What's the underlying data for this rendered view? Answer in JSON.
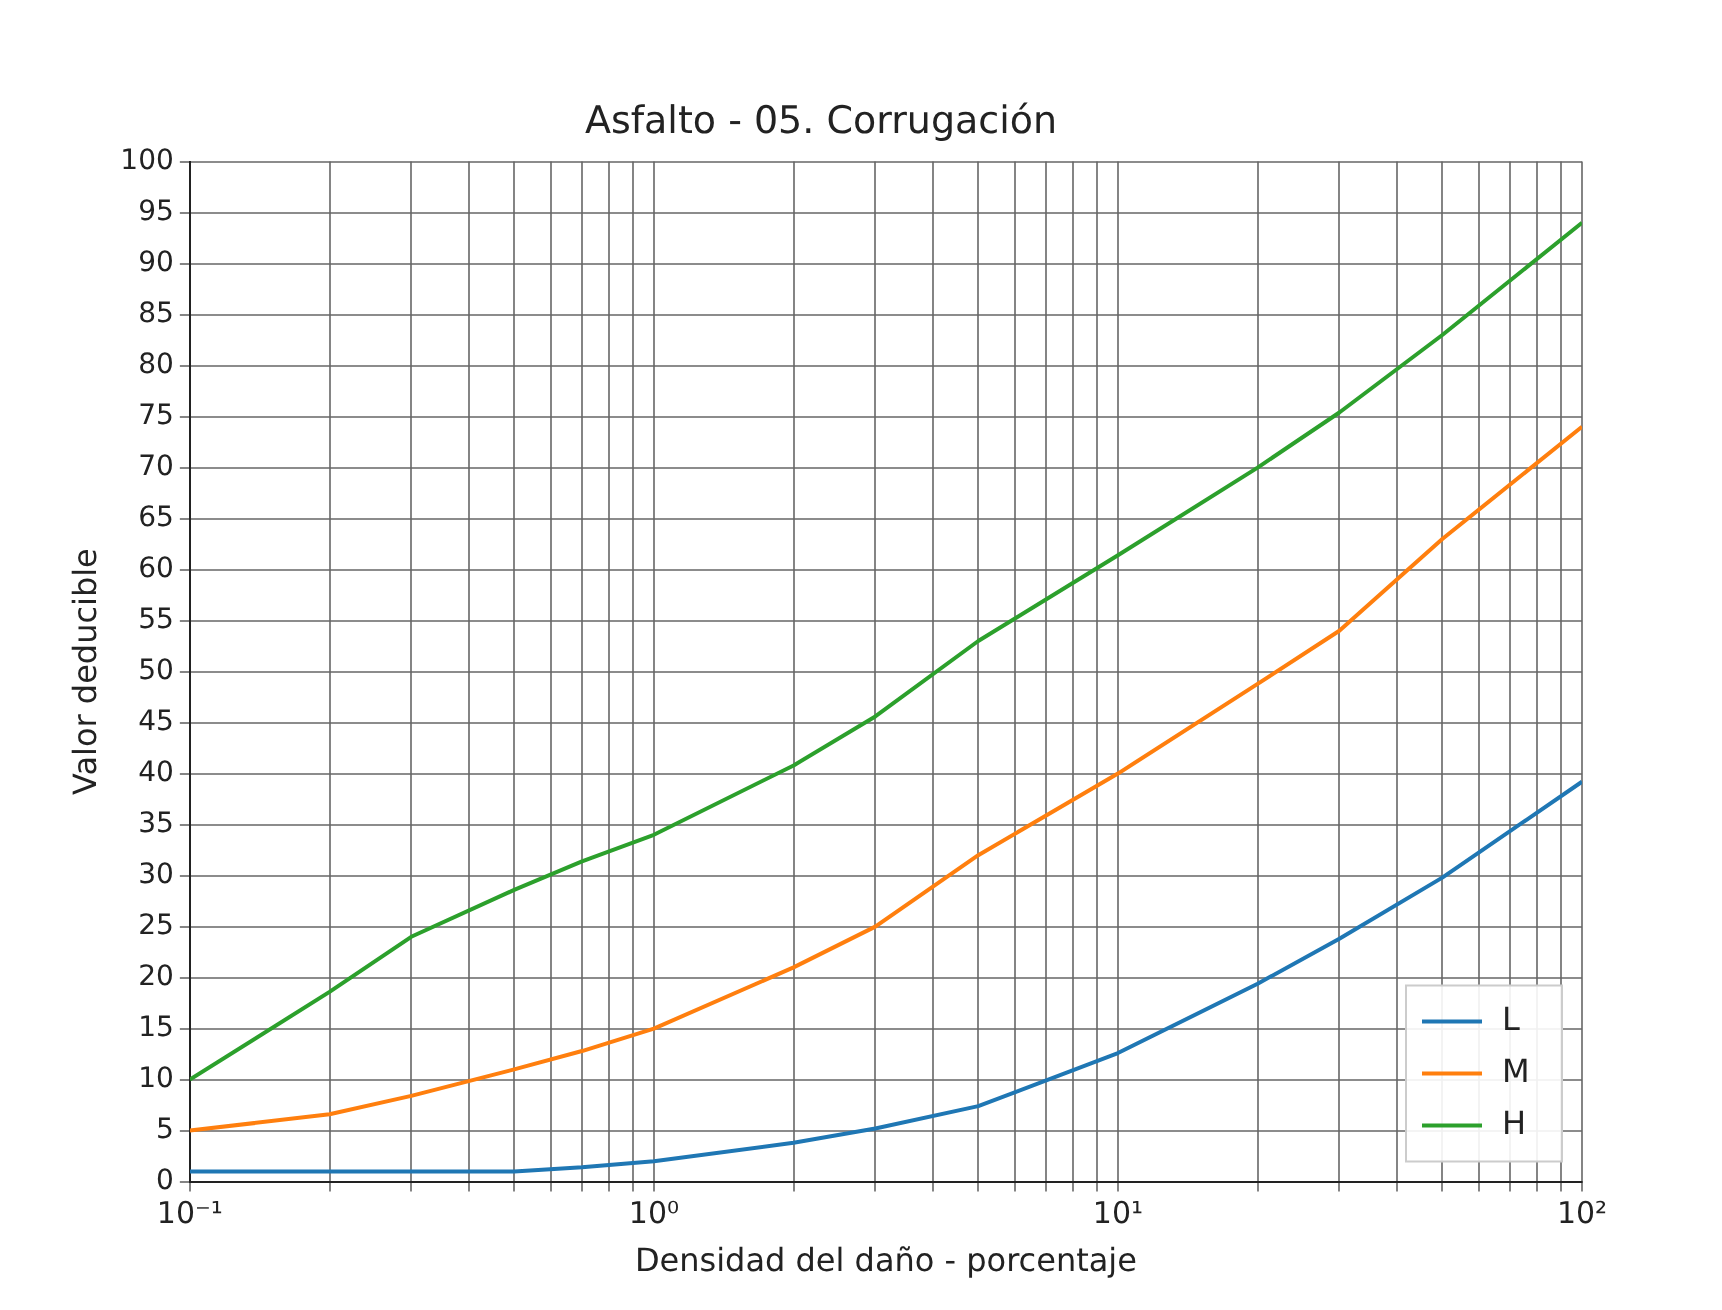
{
  "chart_data": {
    "type": "line",
    "title": "Asfalto - 05. Corrugación",
    "xlabel": "Densidad del daño - porcentaje",
    "ylabel": "Valor deducible",
    "log": "x",
    "grid": true,
    "legend": "bottom right",
    "marker": "none",
    "line_style": "solid",
    "xlim": [
      0.1,
      100
    ],
    "ylim": [
      0,
      100
    ],
    "xticks": [
      {
        "value": 0.1,
        "label": "10⁻¹"
      },
      {
        "value": 0.2,
        "label": null
      },
      {
        "value": 0.3,
        "label": null
      },
      {
        "value": 0.4,
        "label": null
      },
      {
        "value": 0.5,
        "label": null
      },
      {
        "value": 0.6,
        "label": null
      },
      {
        "value": 0.7,
        "label": null
      },
      {
        "value": 0.8,
        "label": null
      },
      {
        "value": 0.9,
        "label": null
      },
      {
        "value": 1,
        "label": "10⁰"
      },
      {
        "value": 2,
        "label": null
      },
      {
        "value": 3,
        "label": null
      },
      {
        "value": 4,
        "label": null
      },
      {
        "value": 5,
        "label": null
      },
      {
        "value": 6,
        "label": null
      },
      {
        "value": 7,
        "label": null
      },
      {
        "value": 8,
        "label": null
      },
      {
        "value": 9,
        "label": null
      },
      {
        "value": 10,
        "label": "10¹"
      },
      {
        "value": 20,
        "label": null
      },
      {
        "value": 30,
        "label": null
      },
      {
        "value": 40,
        "label": null
      },
      {
        "value": 50,
        "label": null
      },
      {
        "value": 60,
        "label": null
      },
      {
        "value": 70,
        "label": null
      },
      {
        "value": 80,
        "label": null
      },
      {
        "value": 90,
        "label": null
      },
      {
        "value": 100,
        "label": "10²"
      }
    ],
    "yticks": [
      0,
      5,
      10,
      15,
      20,
      25,
      30,
      35,
      40,
      45,
      50,
      55,
      60,
      65,
      70,
      75,
      80,
      85,
      90,
      95,
      100
    ],
    "x": [
      0.1,
      0.2,
      0.3,
      0.5,
      0.7,
      1,
      2,
      3,
      5,
      10,
      20,
      30,
      50,
      100
    ],
    "series": [
      {
        "name": "L",
        "color": "#1f77b4",
        "values": [
          1,
          1,
          1,
          1,
          1.4,
          2,
          3.8,
          5.2,
          7.4,
          12.6,
          19.4,
          23.8,
          29.8,
          39.2
        ]
      },
      {
        "name": "M",
        "color": "#ff7f0e",
        "values": [
          5,
          6.6,
          8.4,
          11,
          12.8,
          15,
          21,
          25,
          32,
          40,
          48.8,
          54,
          63,
          74
        ]
      },
      {
        "name": "H",
        "color": "#2ca02c",
        "values": [
          10,
          18.6,
          24,
          28.6,
          31.4,
          34,
          40.8,
          45.6,
          53,
          61.4,
          70,
          75.4,
          83,
          94
        ]
      }
    ]
  }
}
